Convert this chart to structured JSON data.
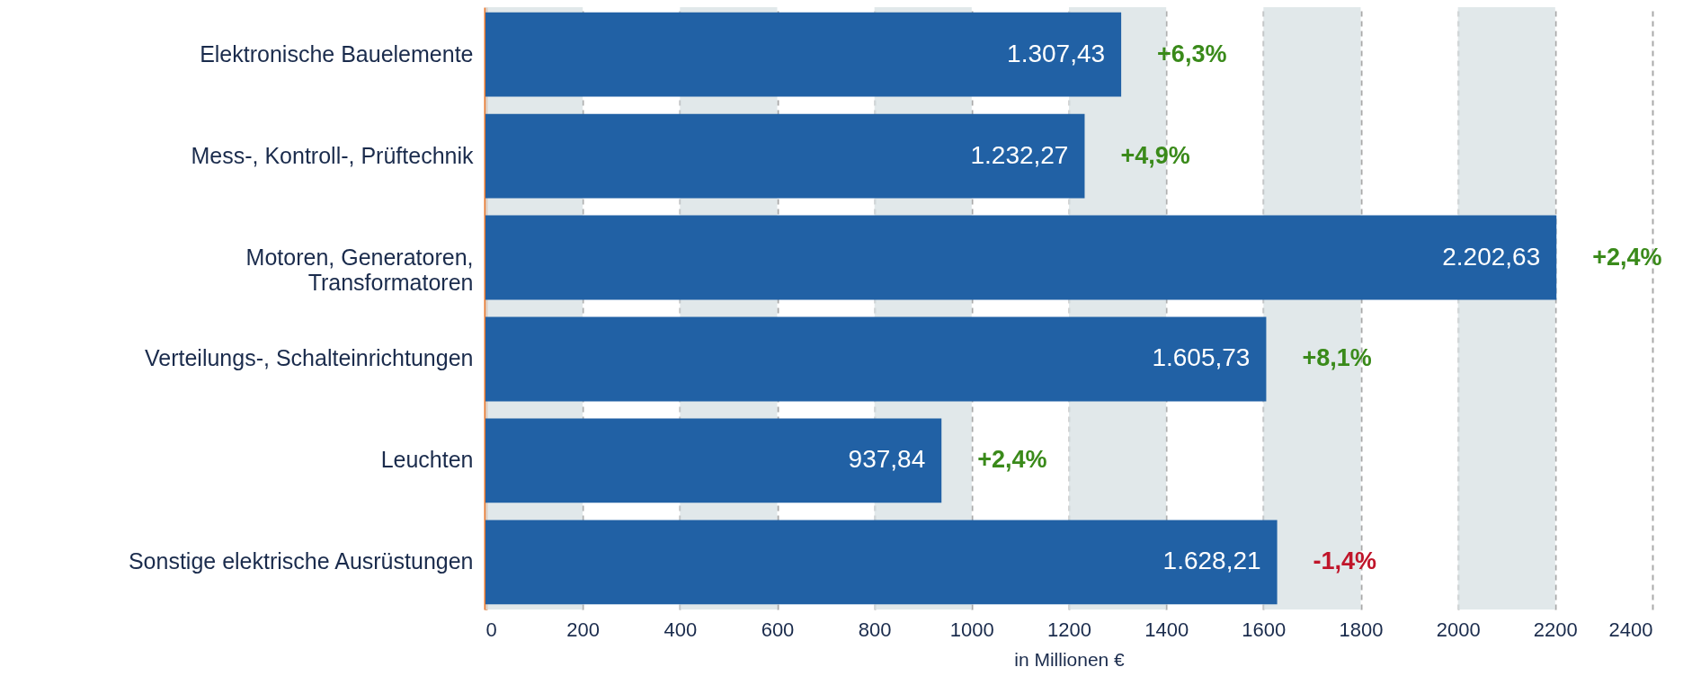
{
  "chart_data": {
    "type": "bar",
    "orientation": "horizontal",
    "xlabel": "in Millionen €",
    "categories": [
      "Elektronische Bauelemente",
      "Mess-, Kontroll-, Prüftechnik",
      "Motoren, Generatoren, Transformatoren",
      "Verteilungs-, Schalteinrichtungen",
      "Leuchten",
      "Sonstige elektrische Ausrüstungen"
    ],
    "values": [
      1307.43,
      1232.27,
      2202.63,
      1605.73,
      937.84,
      1628.21
    ],
    "value_labels": [
      "1.307,43",
      "1.232,27",
      "2.202,63",
      "1.605,73",
      "937,84",
      "1.628,21"
    ],
    "color": "#2161a5",
    "xlim": [
      0,
      2400
    ],
    "xticks": [
      0,
      200,
      400,
      600,
      800,
      1000,
      1200,
      1400,
      1600,
      1800,
      2000,
      2200,
      2400
    ],
    "grid": "x",
    "bands": [
      {
        "axis": "x",
        "from": 0,
        "to": 200,
        "color": "#d9e2e5"
      },
      {
        "axis": "x",
        "from": 400,
        "to": 600,
        "color": "#d9e2e5"
      },
      {
        "axis": "x",
        "from": 800,
        "to": 1000,
        "color": "#d9e2e5"
      },
      {
        "axis": "x",
        "from": 1200,
        "to": 1400,
        "color": "#d9e2e5"
      },
      {
        "axis": "x",
        "from": 1600,
        "to": 1800,
        "color": "#d9e2e5"
      },
      {
        "axis": "x",
        "from": 2000,
        "to": 2200,
        "color": "#d9e2e5"
      }
    ],
    "annotations": [
      {
        "text": "+6,3%",
        "x": 1307.43,
        "y": "Elektronische Bauelemente"
      },
      {
        "text": "+4,9%",
        "x": 1232.27,
        "y": "Mess-, Kontroll-, Prüftechnik"
      },
      {
        "text": "+2,4%",
        "x": 2202.63,
        "y": "Motoren, Generatoren, Transformatoren"
      },
      {
        "text": "+8,1%",
        "x": 1605.73,
        "y": "Verteilungs-, Schalteinrichtungen"
      },
      {
        "text": "+2,4%",
        "x": 937.84,
        "y": "Leuchten"
      },
      {
        "text": "-1,4%",
        "x": 1628.21,
        "y": "Sonstige elektrische Ausrüstungen"
      }
    ]
  }
}
